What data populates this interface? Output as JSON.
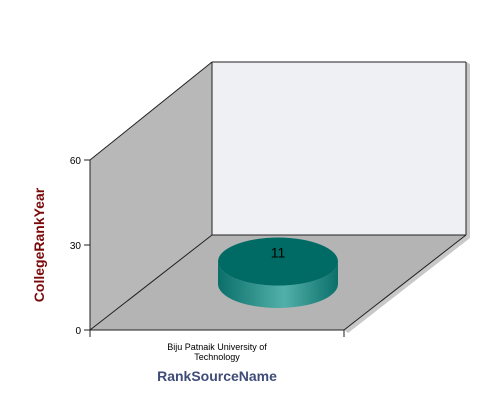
{
  "chart_data": {
    "type": "bar",
    "style": "3d-cylinder",
    "categories": [
      "Biju Patnaik University of Technology"
    ],
    "category_label_lines": [
      "Biju Patnaik University of",
      "Technology"
    ],
    "series": [
      {
        "values": [
          11
        ]
      }
    ],
    "data_labels": [
      "11"
    ],
    "xlabel": "RankSourceName",
    "ylabel": "CollegeRankYear",
    "ylim": [
      0,
      60
    ],
    "yticks": [
      0,
      30,
      60
    ],
    "ytick_labels": [
      "0",
      "30",
      "60"
    ],
    "grid": false,
    "legend": "none"
  },
  "colors": {
    "wall_back": "#eef0f4",
    "wall_side": "#b8b8b8",
    "floor": "#b4b4b4",
    "wall_edge": "#c8c8c8",
    "bar_top": "#006a64",
    "bar_side_dark": "#0b6f69",
    "bar_side_light": "#52b0aa",
    "axis_title": "#7a0a0a",
    "xaxis_title": "#3f4c78",
    "tick_text": "#000000"
  }
}
